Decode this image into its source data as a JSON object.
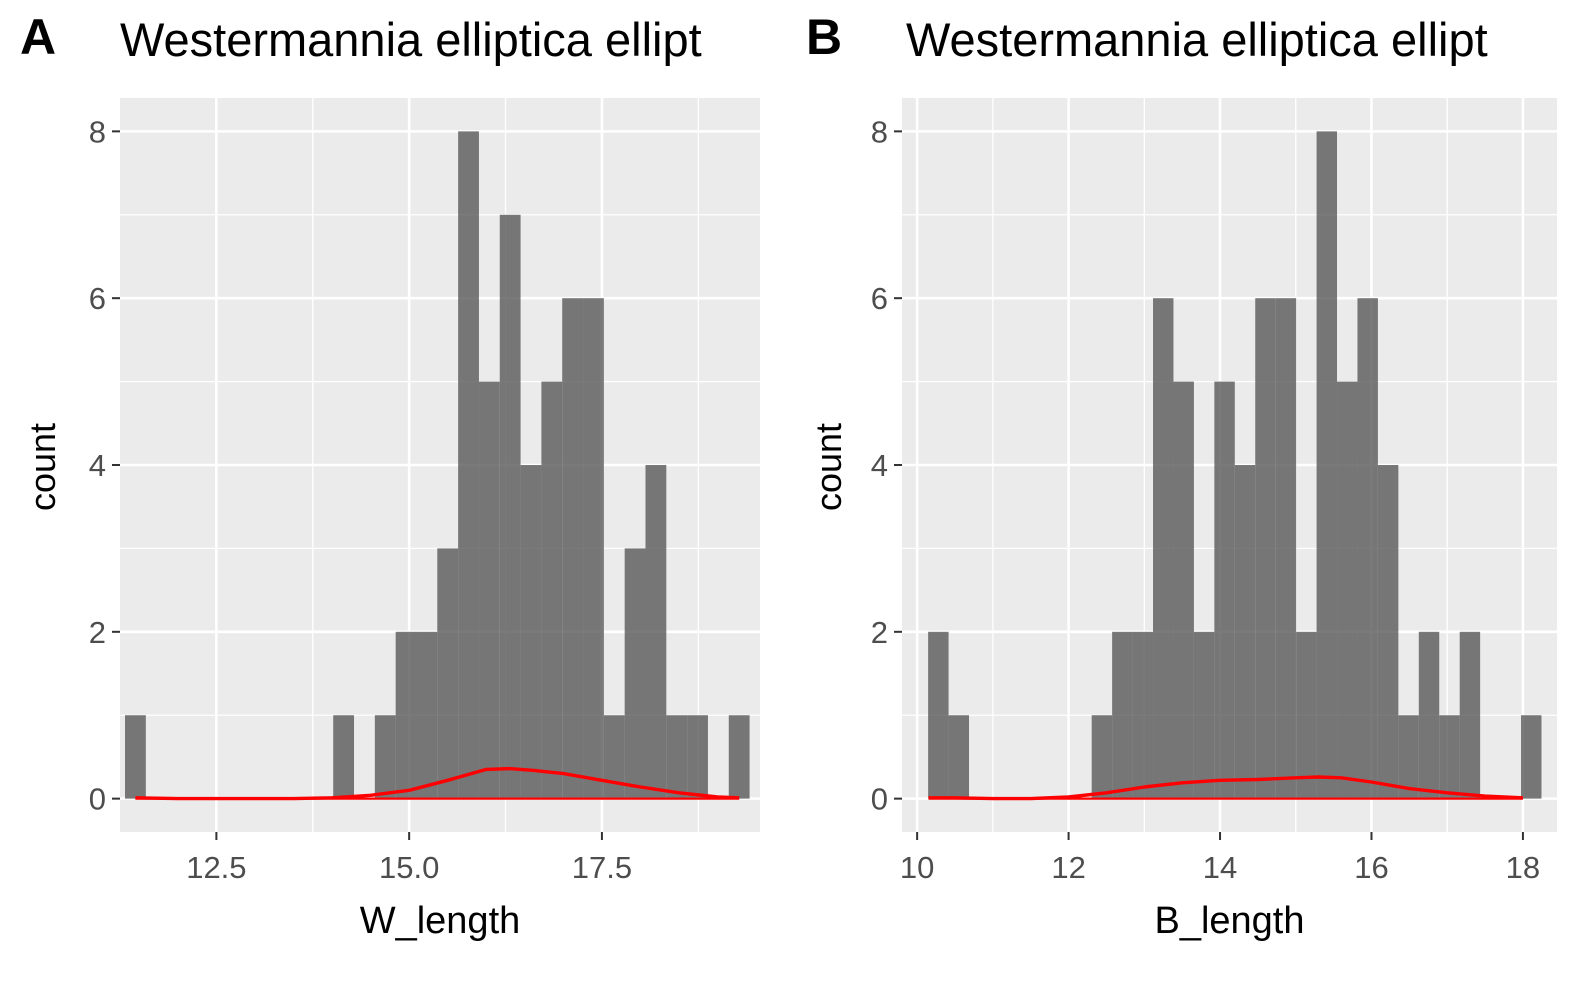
{
  "chart_data": [
    {
      "type": "bar",
      "panel_tag": "A",
      "title": "Westermannia elliptica ellipt",
      "xlabel": "W_length",
      "ylabel": "count",
      "xlim": [
        11.25,
        19.55
      ],
      "ylim": [
        -0.4,
        8.4
      ],
      "xticks": [
        12.5,
        15.0,
        17.5
      ],
      "xtick_labels": [
        "12.5",
        "15.0",
        "17.5"
      ],
      "yticks": [
        0,
        2,
        4,
        6,
        8
      ],
      "ytick_labels": [
        "0",
        "2",
        "4",
        "6",
        "8"
      ],
      "bin_width": 0.27,
      "bins": [
        {
          "x": 11.45,
          "count": 1
        },
        {
          "x": 11.72,
          "count": 0
        },
        {
          "x": 11.99,
          "count": 0
        },
        {
          "x": 12.26,
          "count": 0
        },
        {
          "x": 12.53,
          "count": 0
        },
        {
          "x": 12.8,
          "count": 0
        },
        {
          "x": 13.07,
          "count": 0
        },
        {
          "x": 13.34,
          "count": 0
        },
        {
          "x": 13.61,
          "count": 0
        },
        {
          "x": 13.88,
          "count": 0
        },
        {
          "x": 14.15,
          "count": 1
        },
        {
          "x": 14.42,
          "count": 0
        },
        {
          "x": 14.69,
          "count": 1
        },
        {
          "x": 14.96,
          "count": 2
        },
        {
          "x": 15.23,
          "count": 2
        },
        {
          "x": 15.5,
          "count": 3
        },
        {
          "x": 15.77,
          "count": 8
        },
        {
          "x": 16.04,
          "count": 5
        },
        {
          "x": 16.31,
          "count": 7
        },
        {
          "x": 16.58,
          "count": 4
        },
        {
          "x": 16.85,
          "count": 5
        },
        {
          "x": 17.12,
          "count": 6
        },
        {
          "x": 17.39,
          "count": 6
        },
        {
          "x": 17.66,
          "count": 1
        },
        {
          "x": 17.93,
          "count": 3
        },
        {
          "x": 18.2,
          "count": 4
        },
        {
          "x": 18.47,
          "count": 1
        },
        {
          "x": 18.74,
          "count": 1
        },
        {
          "x": 19.01,
          "count": 0
        },
        {
          "x": 19.28,
          "count": 1
        }
      ],
      "density_color": "#ff0000",
      "bar_color": "#595959",
      "density": {
        "x": [
          11.45,
          12.0,
          12.5,
          13.0,
          13.5,
          14.0,
          14.5,
          15.0,
          15.5,
          16.0,
          16.3,
          16.6,
          17.0,
          17.5,
          18.0,
          18.5,
          19.0,
          19.28
        ],
        "y": [
          0.01,
          0.0,
          0.0,
          0.0,
          0.0,
          0.01,
          0.04,
          0.1,
          0.22,
          0.35,
          0.36,
          0.34,
          0.3,
          0.22,
          0.14,
          0.07,
          0.02,
          0.01
        ]
      }
    },
    {
      "type": "bar",
      "panel_tag": "B",
      "title": "Westermannia elliptica ellipt",
      "xlabel": "B_length",
      "ylabel": "count",
      "xlim": [
        9.8,
        18.45
      ],
      "ylim": [
        -0.4,
        8.4
      ],
      "xticks": [
        10,
        12,
        14,
        16,
        18
      ],
      "xtick_labels": [
        "10",
        "12",
        "14",
        "16",
        "18"
      ],
      "yticks": [
        0,
        2,
        4,
        6,
        8
      ],
      "ytick_labels": [
        "0",
        "2",
        "4",
        "6",
        "8"
      ],
      "bin_width": 0.27,
      "bins": [
        {
          "x": 10.28,
          "count": 2
        },
        {
          "x": 10.55,
          "count": 1
        },
        {
          "x": 10.82,
          "count": 0
        },
        {
          "x": 11.09,
          "count": 0
        },
        {
          "x": 11.36,
          "count": 0
        },
        {
          "x": 11.63,
          "count": 0
        },
        {
          "x": 11.9,
          "count": 0
        },
        {
          "x": 12.17,
          "count": 0
        },
        {
          "x": 12.44,
          "count": 1
        },
        {
          "x": 12.71,
          "count": 2
        },
        {
          "x": 12.98,
          "count": 2
        },
        {
          "x": 13.25,
          "count": 6
        },
        {
          "x": 13.52,
          "count": 5
        },
        {
          "x": 13.79,
          "count": 2
        },
        {
          "x": 14.06,
          "count": 5
        },
        {
          "x": 14.33,
          "count": 4
        },
        {
          "x": 14.6,
          "count": 6
        },
        {
          "x": 14.87,
          "count": 6
        },
        {
          "x": 15.14,
          "count": 2
        },
        {
          "x": 15.41,
          "count": 8
        },
        {
          "x": 15.68,
          "count": 5
        },
        {
          "x": 15.95,
          "count": 6
        },
        {
          "x": 16.22,
          "count": 4
        },
        {
          "x": 16.49,
          "count": 1
        },
        {
          "x": 16.76,
          "count": 2
        },
        {
          "x": 17.03,
          "count": 1
        },
        {
          "x": 17.3,
          "count": 2
        },
        {
          "x": 17.57,
          "count": 0
        },
        {
          "x": 17.84,
          "count": 0
        },
        {
          "x": 18.11,
          "count": 1
        }
      ],
      "density_color": "#ff0000",
      "bar_color": "#595959",
      "density": {
        "x": [
          10.15,
          10.5,
          11.0,
          11.5,
          12.0,
          12.5,
          13.0,
          13.5,
          14.0,
          14.5,
          15.0,
          15.3,
          15.6,
          16.0,
          16.5,
          17.0,
          17.5,
          18.0
        ],
        "y": [
          0.01,
          0.01,
          0.0,
          0.0,
          0.02,
          0.07,
          0.14,
          0.19,
          0.22,
          0.23,
          0.25,
          0.26,
          0.25,
          0.2,
          0.12,
          0.07,
          0.03,
          0.01
        ]
      }
    }
  ]
}
